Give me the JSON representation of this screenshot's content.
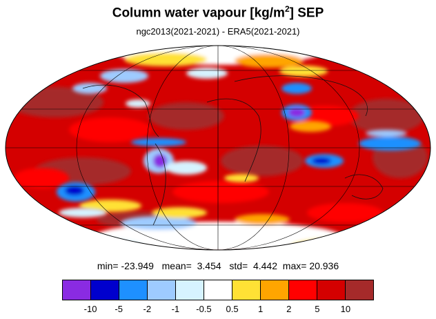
{
  "title": {
    "main": "Column water vapour [kg/m",
    "sup": "2",
    "suffix": "] SEP"
  },
  "subtitle": "ngc2013(2021-2021) - ERA5(2021-2021)",
  "stats": {
    "min_label": "min=",
    "min": "-23.949",
    "mean_label": "mean=",
    "mean": "3.454",
    "std_label": "std=",
    "std": "4.442",
    "max_label": "max=",
    "max": "20.936"
  },
  "colorbar": {
    "colors": [
      "#8a2be2",
      "#0000cd",
      "#1e90ff",
      "#9ecbff",
      "#d6f3ff",
      "#ffffff",
      "#ffe135",
      "#ffa500",
      "#ff0000",
      "#d40000",
      "#a52a2a"
    ],
    "labels": [
      "-10",
      "-5",
      "-2",
      "-1",
      "-0.5",
      "0.5",
      "1",
      "2",
      "5",
      "10"
    ]
  },
  "map": {
    "projection": "mollweide",
    "graticule": "on",
    "background_color": "#d40000"
  }
}
